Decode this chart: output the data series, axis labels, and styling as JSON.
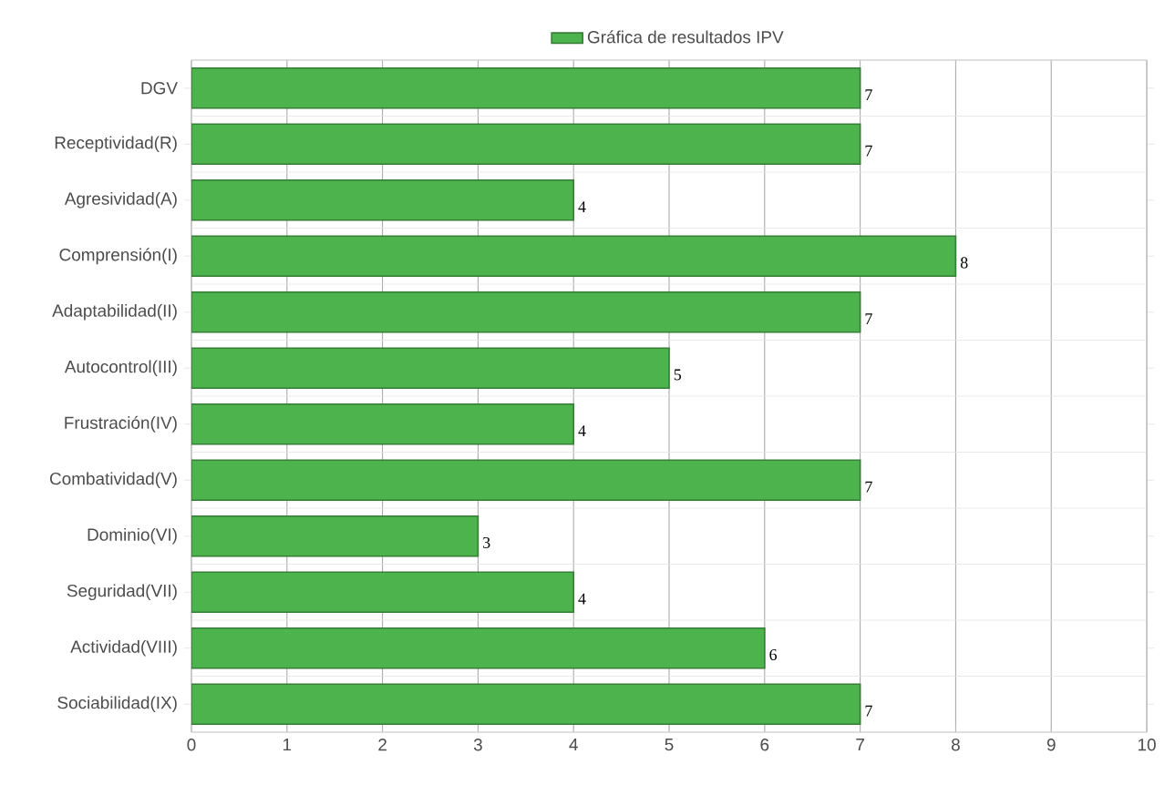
{
  "chart_data": {
    "type": "bar",
    "orientation": "horizontal",
    "categories": [
      "DGV",
      "Receptividad(R)",
      "Agresividad(A)",
      "Comprensión(I)",
      "Adaptabilidad(II)",
      "Autocontrol(III)",
      "Frustración(IV)",
      "Combatividad(V)",
      "Dominio(VI)",
      "Seguridad(VII)",
      "Actividad(VIII)",
      "Sociabilidad(IX)"
    ],
    "series": [
      {
        "name": "Gráfica de resultados IPV",
        "color": "#4db34d",
        "values": [
          7,
          7,
          4,
          8,
          7,
          5,
          4,
          7,
          3,
          4,
          6,
          7
        ]
      }
    ],
    "xlim": [
      0,
      10
    ],
    "xticks": [
      0,
      1,
      2,
      3,
      4,
      5,
      6,
      7,
      8,
      9,
      10
    ],
    "grid": true,
    "legend": "top",
    "data_labels": true
  }
}
